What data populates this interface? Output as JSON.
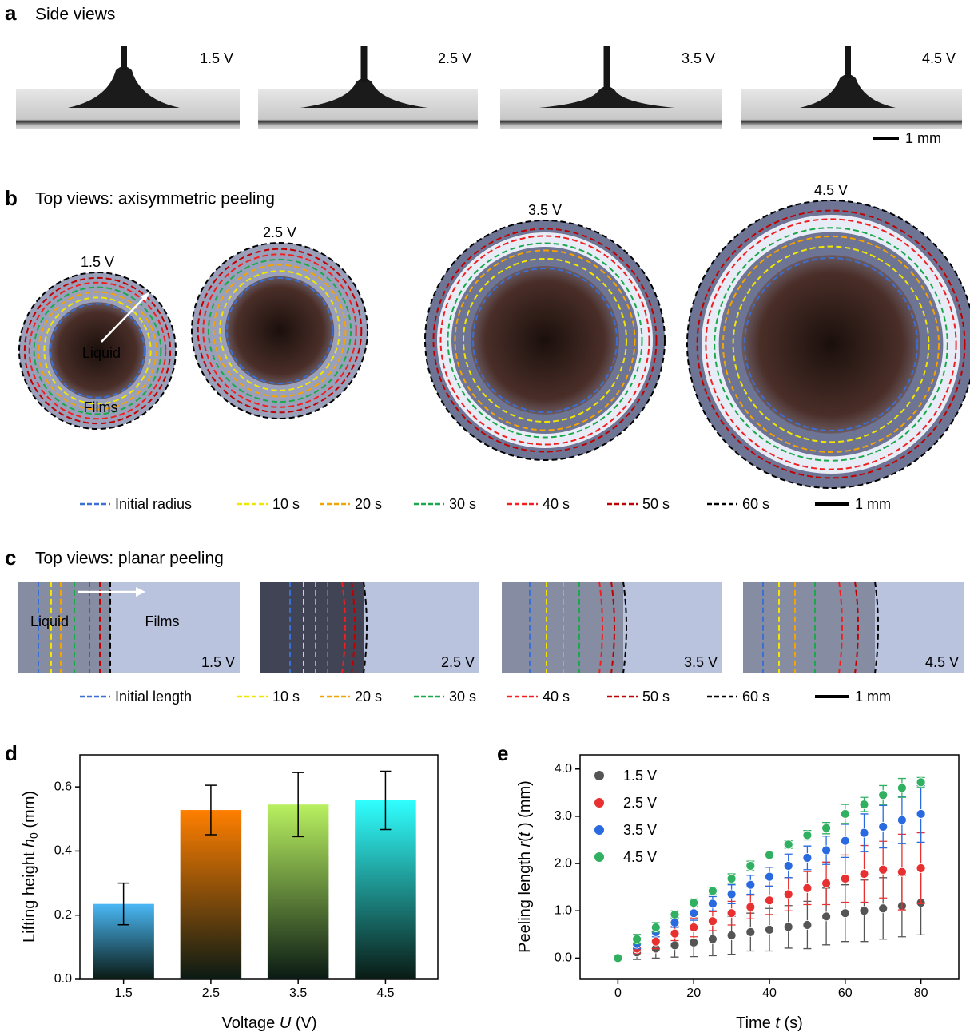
{
  "panels": {
    "a": {
      "letter": "a",
      "title": "Side views",
      "labels": [
        "1.5 V",
        "2.5 V",
        "3.5 V",
        "4.5 V"
      ],
      "scale": "1 mm"
    },
    "b": {
      "letter": "b",
      "title": "Top views: axisymmetric peeling",
      "labels": [
        "1.5 V",
        "2.5 V",
        "3.5 V",
        "4.5 V"
      ],
      "annotations": [
        "Liquid",
        "Films"
      ],
      "legend": [
        {
          "label": "Initial radius",
          "color": "#3b6fd4"
        },
        {
          "label": "10 s",
          "color": "#f2e600"
        },
        {
          "label": "20 s",
          "color": "#f5a300"
        },
        {
          "label": "30 s",
          "color": "#1aa84a"
        },
        {
          "label": "40 s",
          "color": "#f02020"
        },
        {
          "label": "50 s",
          "color": "#c00000"
        },
        {
          "label": "60 s",
          "color": "#000000"
        }
      ],
      "scale": "1 mm"
    },
    "c": {
      "letter": "c",
      "title": "Top views: planar peeling",
      "labels": [
        "1.5 V",
        "2.5 V",
        "3.5 V",
        "4.5 V"
      ],
      "annotations": [
        "Liquid",
        "Films"
      ],
      "legend": [
        {
          "label": "Initial length",
          "color": "#3b6fd4"
        },
        {
          "label": "10 s",
          "color": "#f2e600"
        },
        {
          "label": "20 s",
          "color": "#f5a300"
        },
        {
          "label": "30 s",
          "color": "#1aa84a"
        },
        {
          "label": "40 s",
          "color": "#f02020"
        },
        {
          "label": "50 s",
          "color": "#c00000"
        },
        {
          "label": "60 s",
          "color": "#000000"
        }
      ],
      "scale": "1 mm"
    }
  },
  "chart_data": [
    {
      "type": "bar",
      "letter": "d",
      "xlabel": [
        "Voltage ",
        "U",
        " (V)"
      ],
      "ylabel": [
        "Lifting height ",
        "h",
        "0",
        " (mm)"
      ],
      "x": [
        1.5,
        2.5,
        3.5,
        4.5
      ],
      "values": [
        0.235,
        0.528,
        0.545,
        0.558
      ],
      "errors": [
        0.065,
        0.077,
        0.1,
        0.091
      ],
      "colors": [
        "#4ab8f5",
        "#ff7f00",
        "#b8f060",
        "#30ffff"
      ],
      "xlim": [
        1,
        5.1
      ],
      "xticks": [
        1.5,
        2.5,
        3.5,
        4.5
      ],
      "ylim": [
        0,
        0.7
      ],
      "yticks": [
        {
          "value": 0,
          "label": "0.0"
        },
        0.2,
        0.4,
        0.6
      ]
    },
    {
      "type": "scatter",
      "letter": "e",
      "xlabel": [
        "Time ",
        "t",
        " (s)"
      ],
      "ylabel": [
        "Peeling length ",
        "r",
        "(",
        "t",
        " ) (mm)"
      ],
      "x": [
        0,
        5,
        10,
        15,
        20,
        25,
        30,
        35,
        40,
        45,
        50,
        55,
        60,
        65,
        70,
        75,
        80
      ],
      "series": [
        {
          "name": "1.5 V",
          "color": "#555555",
          "values": [
            0,
            0.12,
            0.2,
            0.27,
            0.33,
            0.4,
            0.48,
            0.55,
            0.6,
            0.66,
            0.7,
            0.88,
            0.95,
            1.0,
            1.05,
            1.1,
            1.17
          ],
          "errors": [
            0,
            0.15,
            0.2,
            0.25,
            0.3,
            0.35,
            0.4,
            0.4,
            0.45,
            0.45,
            0.5,
            0.6,
            0.6,
            0.65,
            0.65,
            0.65,
            0.68
          ]
        },
        {
          "name": "2.5 V",
          "color": "#e83030",
          "values": [
            0,
            0.2,
            0.35,
            0.52,
            0.65,
            0.78,
            0.95,
            1.08,
            1.22,
            1.35,
            1.48,
            1.58,
            1.68,
            1.78,
            1.87,
            1.82,
            1.9
          ],
          "errors": [
            0,
            0.1,
            0.15,
            0.15,
            0.2,
            0.2,
            0.25,
            0.25,
            0.3,
            0.35,
            0.35,
            0.45,
            0.5,
            0.6,
            0.6,
            0.8,
            0.75
          ]
        },
        {
          "name": "3.5 V",
          "color": "#2a6ae0",
          "values": [
            0,
            0.3,
            0.55,
            0.75,
            0.95,
            1.15,
            1.35,
            1.55,
            1.72,
            1.95,
            2.12,
            2.28,
            2.48,
            2.65,
            2.78,
            2.92,
            3.05
          ],
          "errors": [
            0,
            0.1,
            0.1,
            0.1,
            0.15,
            0.15,
            0.2,
            0.2,
            0.2,
            0.25,
            0.25,
            0.3,
            0.35,
            0.4,
            0.45,
            0.5,
            0.6
          ]
        },
        {
          "name": "4.5 V",
          "color": "#30b060",
          "values": [
            0,
            0.4,
            0.65,
            0.92,
            1.17,
            1.42,
            1.68,
            1.95,
            2.18,
            2.4,
            2.6,
            2.75,
            3.05,
            3.25,
            3.45,
            3.6,
            3.72
          ],
          "errors": [
            0,
            0.1,
            0.1,
            0.08,
            0.08,
            0.08,
            0.1,
            0.1,
            0.05,
            0.08,
            0.1,
            0.12,
            0.2,
            0.15,
            0.2,
            0.2,
            0.1
          ]
        }
      ],
      "xlim": [
        -10,
        90
      ],
      "xticks": [
        0,
        20,
        40,
        60,
        80
      ],
      "ylim": [
        -0.45,
        4.3
      ],
      "yticks": [
        {
          "value": 0,
          "label": "0.0"
        },
        {
          "value": 1,
          "label": "1.0"
        },
        {
          "value": 2,
          "label": "2.0"
        },
        {
          "value": 3,
          "label": "3.0"
        },
        {
          "value": 4,
          "label": "4.0"
        }
      ],
      "legend": "upper left"
    }
  ]
}
